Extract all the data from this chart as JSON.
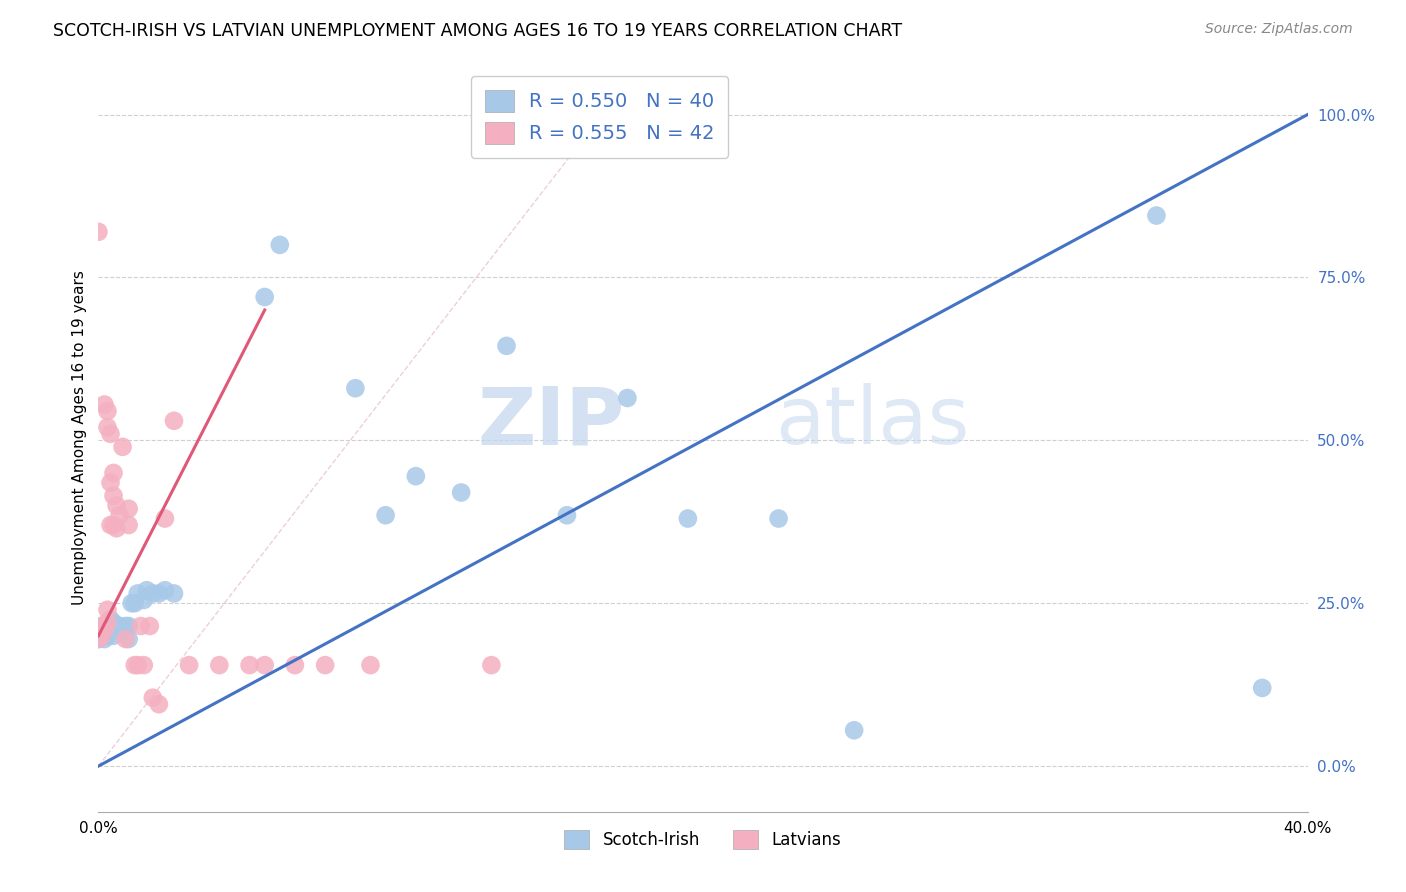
{
  "title": "SCOTCH-IRISH VS LATVIAN UNEMPLOYMENT AMONG AGES 16 TO 19 YEARS CORRELATION CHART",
  "source": "Source: ZipAtlas.com",
  "ylabel": "Unemployment Among Ages 16 to 19 years",
  "xmin": 0.0,
  "xmax": 0.4,
  "ymin": -0.07,
  "ymax": 1.08,
  "right_yticks": [
    0.0,
    0.25,
    0.5,
    0.75,
    1.0
  ],
  "right_yticklabels": [
    "0.0%",
    "25.0%",
    "50.0%",
    "75.0%",
    "100.0%"
  ],
  "xticks": [
    0.0,
    0.05,
    0.1,
    0.15,
    0.2,
    0.25,
    0.3,
    0.35,
    0.4
  ],
  "xticklabels": [
    "0.0%",
    "",
    "",
    "",
    "",
    "",
    "",
    "",
    "40.0%"
  ],
  "scotch_irish_R": "0.550",
  "scotch_irish_N": "40",
  "latvian_R": "0.555",
  "latvian_N": "42",
  "scotch_irish_color": "#a8c8e8",
  "latvian_color": "#f4b0c0",
  "scotch_irish_line_color": "#4472c4",
  "latvian_line_color": "#e05878",
  "watermark_zip": "ZIP",
  "watermark_atlas": "atlas",
  "si_line_x0": 0.0,
  "si_line_y0": 0.0,
  "si_line_x1": 0.4,
  "si_line_y1": 1.0,
  "lv_line_x0": 0.0,
  "lv_line_y0": 0.2,
  "lv_line_x1": 0.055,
  "lv_line_y1": 0.7,
  "ref_line_x0": 0.0,
  "ref_line_y0": 0.0,
  "ref_line_x1": 0.175,
  "ref_line_y1": 1.05,
  "si_x": [
    0.0,
    0.001,
    0.001,
    0.002,
    0.002,
    0.003,
    0.003,
    0.004,
    0.004,
    0.005,
    0.005,
    0.006,
    0.007,
    0.008,
    0.009,
    0.01,
    0.01,
    0.011,
    0.012,
    0.013,
    0.015,
    0.016,
    0.018,
    0.02,
    0.022,
    0.025,
    0.055,
    0.06,
    0.085,
    0.095,
    0.105,
    0.12,
    0.135,
    0.155,
    0.175,
    0.195,
    0.225,
    0.25,
    0.35,
    0.385
  ],
  "si_y": [
    0.195,
    0.2,
    0.215,
    0.195,
    0.215,
    0.2,
    0.22,
    0.21,
    0.225,
    0.2,
    0.22,
    0.215,
    0.215,
    0.21,
    0.215,
    0.195,
    0.215,
    0.25,
    0.25,
    0.265,
    0.255,
    0.27,
    0.265,
    0.265,
    0.27,
    0.265,
    0.72,
    0.8,
    0.58,
    0.385,
    0.445,
    0.42,
    0.645,
    0.385,
    0.565,
    0.38,
    0.38,
    0.055,
    0.845,
    0.12
  ],
  "lv_x": [
    0.0,
    0.0,
    0.0,
    0.0,
    0.001,
    0.001,
    0.002,
    0.002,
    0.003,
    0.003,
    0.003,
    0.003,
    0.004,
    0.004,
    0.004,
    0.005,
    0.005,
    0.005,
    0.006,
    0.006,
    0.007,
    0.008,
    0.009,
    0.01,
    0.01,
    0.012,
    0.013,
    0.014,
    0.015,
    0.017,
    0.018,
    0.02,
    0.022,
    0.025,
    0.03,
    0.04,
    0.05,
    0.055,
    0.065,
    0.075,
    0.09,
    0.13
  ],
  "lv_y": [
    0.195,
    0.205,
    0.21,
    0.82,
    0.2,
    0.215,
    0.21,
    0.555,
    0.22,
    0.24,
    0.52,
    0.545,
    0.37,
    0.435,
    0.51,
    0.37,
    0.415,
    0.45,
    0.365,
    0.4,
    0.385,
    0.49,
    0.195,
    0.37,
    0.395,
    0.155,
    0.155,
    0.215,
    0.155,
    0.215,
    0.105,
    0.095,
    0.38,
    0.53,
    0.155,
    0.155,
    0.155,
    0.155,
    0.155,
    0.155,
    0.155,
    0.155
  ]
}
